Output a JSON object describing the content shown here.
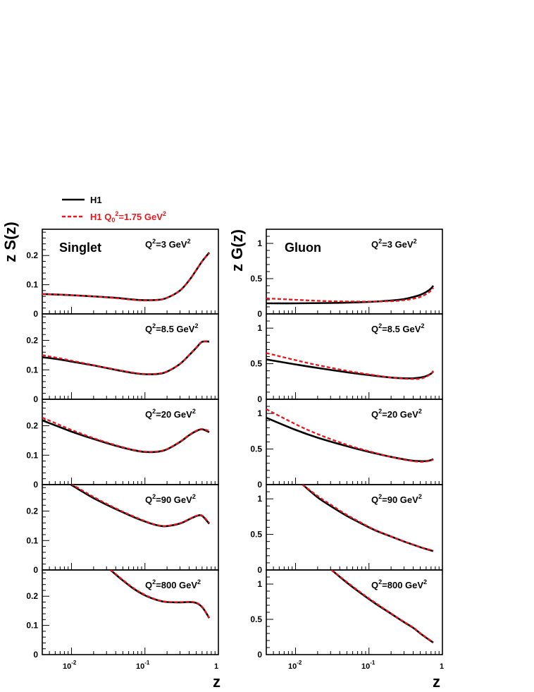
{
  "legend": {
    "entries": [
      {
        "label": "H1",
        "color": "#000000",
        "style": "solid"
      },
      {
        "label_main": "H1 Q",
        "label_sub": "0",
        "label_sup": "2",
        "label_tail": "=1.75 GeV",
        "label_tail_sup": "2",
        "color": "#e8161b",
        "style": "dashed"
      }
    ]
  },
  "xaxis": {
    "label": "z",
    "scale": "log",
    "xlim": [
      0.004,
      1
    ],
    "ticks": [
      {
        "base": "10",
        "exp": "-2"
      },
      {
        "base": "10",
        "exp": "-1"
      },
      {
        "base": "1",
        "exp": ""
      }
    ]
  },
  "columns": [
    {
      "ylabel": "z S(z)",
      "name": "Singlet",
      "ylim": [
        0,
        0.29
      ],
      "yticks": [
        "0",
        "0.1",
        "0.2"
      ]
    },
    {
      "ylabel": "z G(z)",
      "name": "Gluon",
      "ylim": [
        0,
        1.2
      ],
      "yticks": [
        "0",
        "0.5",
        "1"
      ]
    }
  ],
  "q2_labels": [
    {
      "pre": "Q",
      "sup": "2",
      "mid": "=3 GeV",
      "sup2": "2"
    },
    {
      "pre": "Q",
      "sup": "2",
      "mid": "=8.5 GeV",
      "sup2": "2"
    },
    {
      "pre": "Q",
      "sup": "2",
      "mid": "=20 GeV",
      "sup2": "2"
    },
    {
      "pre": "Q",
      "sup": "2",
      "mid": "=90 GeV",
      "sup2": "2"
    },
    {
      "pre": "Q",
      "sup": "2",
      "mid": "=800 GeV",
      "sup2": "2"
    }
  ],
  "chart_data": [
    {
      "type": "line",
      "column": 0,
      "row": 0,
      "title": "Singlet Q2=3 GeV2",
      "x": [
        0.004,
        0.007,
        0.01,
        0.02,
        0.04,
        0.07,
        0.1,
        0.15,
        0.2,
        0.3,
        0.4,
        0.5,
        0.6,
        0.75
      ],
      "series": [
        {
          "name": "H1",
          "values": [
            0.068,
            0.066,
            0.064,
            0.06,
            0.055,
            0.049,
            0.047,
            0.048,
            0.055,
            0.08,
            0.115,
            0.15,
            0.18,
            0.21
          ]
        },
        {
          "name": "H1 Q0²=1.75 GeV²",
          "values": [
            0.068,
            0.066,
            0.064,
            0.06,
            0.054,
            0.048,
            0.046,
            0.048,
            0.055,
            0.08,
            0.115,
            0.15,
            0.18,
            0.208
          ]
        }
      ]
    },
    {
      "type": "line",
      "column": 0,
      "row": 1,
      "title": "Singlet Q2=8.5 GeV2",
      "x": [
        0.004,
        0.007,
        0.01,
        0.02,
        0.04,
        0.07,
        0.1,
        0.15,
        0.2,
        0.3,
        0.4,
        0.5,
        0.6,
        0.75
      ],
      "series": [
        {
          "name": "H1",
          "values": [
            0.143,
            0.135,
            0.128,
            0.115,
            0.1,
            0.089,
            0.085,
            0.086,
            0.094,
            0.12,
            0.15,
            0.175,
            0.195,
            0.196
          ]
        },
        {
          "name": "H1 Q0²=1.75 GeV²",
          "values": [
            0.15,
            0.139,
            0.131,
            0.116,
            0.101,
            0.09,
            0.086,
            0.087,
            0.095,
            0.12,
            0.15,
            0.176,
            0.195,
            0.198
          ]
        }
      ]
    },
    {
      "type": "line",
      "column": 0,
      "row": 2,
      "title": "Singlet Q2=20 GeV2",
      "x": [
        0.004,
        0.007,
        0.01,
        0.02,
        0.04,
        0.07,
        0.1,
        0.15,
        0.2,
        0.3,
        0.4,
        0.5,
        0.6,
        0.75
      ],
      "series": [
        {
          "name": "H1",
          "values": [
            0.218,
            0.195,
            0.18,
            0.155,
            0.132,
            0.117,
            0.111,
            0.112,
            0.12,
            0.145,
            0.168,
            0.182,
            0.188,
            0.178
          ]
        },
        {
          "name": "H1 Q0²=1.75 GeV²",
          "values": [
            0.228,
            0.202,
            0.186,
            0.158,
            0.134,
            0.118,
            0.112,
            0.113,
            0.121,
            0.146,
            0.169,
            0.183,
            0.189,
            0.182
          ]
        }
      ]
    },
    {
      "type": "line",
      "column": 0,
      "row": 3,
      "title": "Singlet Q2=90 GeV2",
      "x": [
        0.0098,
        0.015,
        0.02,
        0.03,
        0.05,
        0.08,
        0.12,
        0.16,
        0.2,
        0.3,
        0.4,
        0.5,
        0.6,
        0.75
      ],
      "series": [
        {
          "name": "H1",
          "values": [
            0.29,
            0.262,
            0.244,
            0.222,
            0.196,
            0.174,
            0.158,
            0.15,
            0.149,
            0.158,
            0.172,
            0.183,
            0.184,
            0.157
          ]
        },
        {
          "name": "H1 Q0²=1.75 GeV²",
          "values": [
            0.293,
            0.266,
            0.248,
            0.225,
            0.198,
            0.176,
            0.159,
            0.151,
            0.15,
            0.159,
            0.173,
            0.184,
            0.185,
            0.16
          ]
        }
      ]
    },
    {
      "type": "line",
      "column": 0,
      "row": 4,
      "title": "Singlet Q2=800 GeV2",
      "x": [
        0.034,
        0.05,
        0.07,
        0.1,
        0.15,
        0.2,
        0.3,
        0.4,
        0.5,
        0.6,
        0.7,
        0.75
      ],
      "series": [
        {
          "name": "H1",
          "values": [
            0.29,
            0.254,
            0.226,
            0.203,
            0.186,
            0.18,
            0.179,
            0.18,
            0.177,
            0.163,
            0.138,
            0.125
          ]
        },
        {
          "name": "H1 Q0²=1.75 GeV²",
          "values": [
            0.291,
            0.256,
            0.228,
            0.205,
            0.187,
            0.181,
            0.18,
            0.181,
            0.178,
            0.164,
            0.139,
            0.126
          ]
        }
      ]
    },
    {
      "type": "line",
      "column": 1,
      "row": 0,
      "title": "Gluon Q2=3 GeV2",
      "x": [
        0.004,
        0.01,
        0.03,
        0.1,
        0.2,
        0.3,
        0.4,
        0.5,
        0.6,
        0.7,
        0.75
      ],
      "series": [
        {
          "name": "H1",
          "values": [
            0.15,
            0.15,
            0.155,
            0.17,
            0.19,
            0.21,
            0.24,
            0.27,
            0.31,
            0.36,
            0.4
          ]
        },
        {
          "name": "H1 Q0²=1.75 GeV²",
          "values": [
            0.22,
            0.2,
            0.18,
            0.175,
            0.18,
            0.195,
            0.215,
            0.24,
            0.28,
            0.33,
            0.37
          ]
        }
      ]
    },
    {
      "type": "line",
      "column": 1,
      "row": 1,
      "title": "Gluon Q2=8.5 GeV2",
      "x": [
        0.004,
        0.01,
        0.02,
        0.05,
        0.1,
        0.2,
        0.3,
        0.4,
        0.5,
        0.6,
        0.7,
        0.75
      ],
      "series": [
        {
          "name": "H1",
          "values": [
            0.56,
            0.49,
            0.44,
            0.38,
            0.34,
            0.305,
            0.295,
            0.295,
            0.305,
            0.325,
            0.36,
            0.39
          ]
        },
        {
          "name": "H1 Q0²=1.75 GeV²",
          "values": [
            0.65,
            0.55,
            0.48,
            0.4,
            0.35,
            0.305,
            0.29,
            0.285,
            0.29,
            0.315,
            0.36,
            0.4
          ]
        }
      ]
    },
    {
      "type": "line",
      "column": 1,
      "row": 2,
      "title": "Gluon Q2=20 GeV2",
      "x": [
        0.004,
        0.01,
        0.02,
        0.05,
        0.1,
        0.2,
        0.3,
        0.4,
        0.5,
        0.6,
        0.7,
        0.75
      ],
      "series": [
        {
          "name": "H1",
          "values": [
            0.94,
            0.77,
            0.66,
            0.54,
            0.46,
            0.39,
            0.355,
            0.335,
            0.33,
            0.33,
            0.345,
            0.36
          ]
        },
        {
          "name": "H1 Q0²=1.75 GeV²",
          "values": [
            1.06,
            0.85,
            0.71,
            0.56,
            0.47,
            0.39,
            0.35,
            0.33,
            0.32,
            0.325,
            0.34,
            0.35
          ]
        }
      ]
    },
    {
      "type": "line",
      "column": 1,
      "row": 3,
      "title": "Gluon Q2=90 GeV2",
      "x": [
        0.0125,
        0.02,
        0.03,
        0.05,
        0.08,
        0.12,
        0.2,
        0.3,
        0.4,
        0.5,
        0.6,
        0.75
      ],
      "series": [
        {
          "name": "H1",
          "values": [
            1.2,
            1.02,
            0.9,
            0.76,
            0.65,
            0.56,
            0.47,
            0.4,
            0.355,
            0.32,
            0.295,
            0.265
          ]
        },
        {
          "name": "H1 Q0²=1.75 GeV²",
          "values": [
            1.2,
            1.04,
            0.92,
            0.775,
            0.66,
            0.565,
            0.472,
            0.402,
            0.357,
            0.322,
            0.298,
            0.27
          ]
        }
      ]
    },
    {
      "type": "line",
      "column": 1,
      "row": 4,
      "title": "Gluon Q2=800 GeV2",
      "x": [
        0.031,
        0.05,
        0.08,
        0.12,
        0.2,
        0.3,
        0.4,
        0.5,
        0.6,
        0.75
      ],
      "series": [
        {
          "name": "H1",
          "values": [
            1.2,
            1.02,
            0.86,
            0.73,
            0.58,
            0.46,
            0.38,
            0.3,
            0.24,
            0.17
          ]
        },
        {
          "name": "H1 Q0²=1.75 GeV²",
          "values": [
            1.2,
            1.03,
            0.87,
            0.74,
            0.585,
            0.465,
            0.385,
            0.305,
            0.245,
            0.175
          ]
        }
      ]
    }
  ]
}
